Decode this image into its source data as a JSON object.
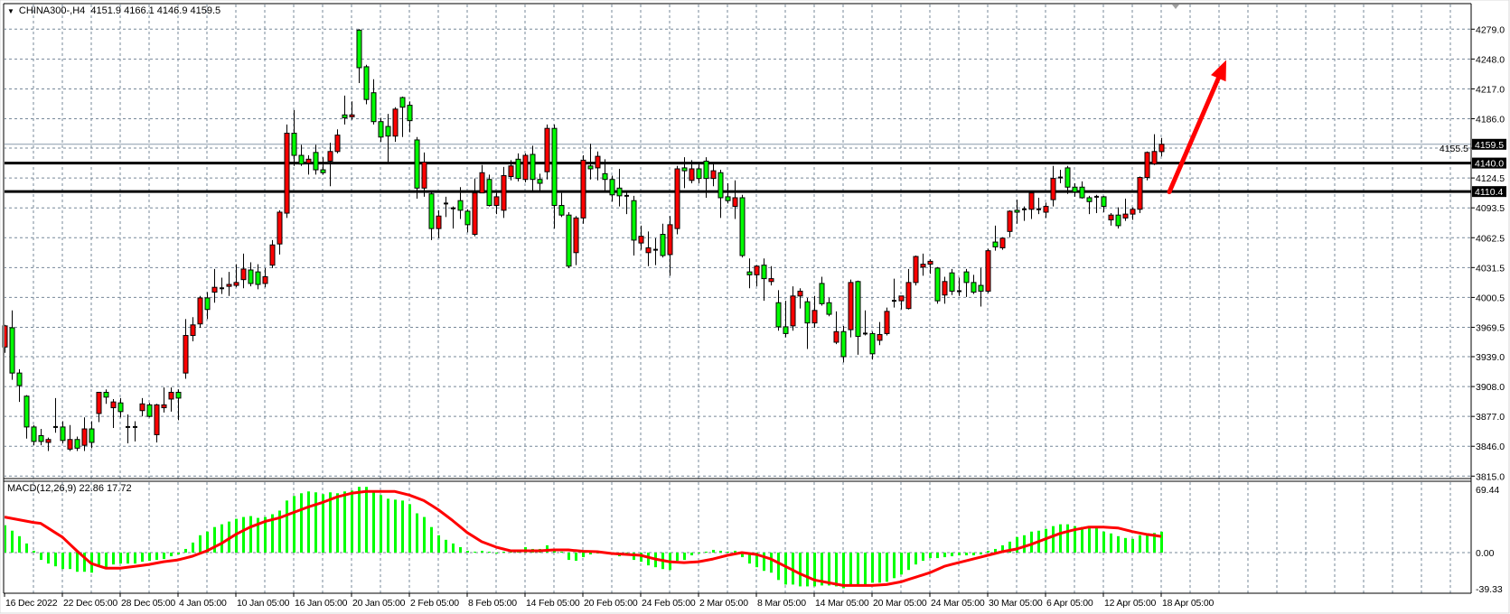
{
  "window": {
    "symbol_label": "CHINA300-,H4",
    "ohlc_readout": "4151.9 4166.1 4146.9 4159.5",
    "collapse_icon": "triangle-down-icon",
    "chart_shift_marker_icon": "triangle-down-icon"
  },
  "colors": {
    "bull_candle": "#ff0000",
    "bear_candle": "#00ff00",
    "candle_outline": "#000000",
    "grid": "#778899",
    "macd_histogram": "#00ff00",
    "macd_signal": "#ff0000",
    "level_lines": "#000000",
    "arrow": "#ff0000",
    "price_tag_bg": "#000000",
    "price_tag_text": "#ffffff"
  },
  "chart_data": [
    {
      "type": "candlestick",
      "symbol": "CHINA300-",
      "timeframe": "H4",
      "ylim": [
        3815.0,
        4279.0
      ],
      "grid": true,
      "y_ticks": [
        "4279.0",
        "4248.0",
        "4217.0",
        "4186.0",
        "4155.5",
        "4124.5",
        "4093.5",
        "4062.5",
        "4031.5",
        "4000.5",
        "3969.5",
        "3939.0",
        "3908.0",
        "3877.0",
        "3846.0",
        "3815.0"
      ],
      "x_ticks": [
        "16 Dec 2022",
        "22 Dec 05:00",
        "28 Dec 05:00",
        "4 Jan 05:00",
        "10 Jan 05:00",
        "16 Jan 05:00",
        "20 Jan 05:00",
        "2 Feb 05:00",
        "8 Feb 05:00",
        "14 Feb 05:00",
        "20 Feb 05:00",
        "24 Feb 05:00",
        "2 Mar 05:00",
        "8 Mar 05:00",
        "14 Mar 05:00",
        "20 Mar 05:00",
        "24 Mar 05:00",
        "30 Mar 05:00",
        "6 Apr 05:00",
        "12 Apr 05:00",
        "18 Apr 05:00"
      ],
      "current_price": "4159.5",
      "horizontal_levels": [
        "4140.0",
        "4110.4"
      ],
      "arrow": {
        "direction": "up",
        "from_price": 4110,
        "to_price": 4247
      },
      "ohlc": [
        [
          3949,
          3972,
          3943,
          3971
        ],
        [
          3969,
          3987,
          3915,
          3922
        ],
        [
          3922,
          3926,
          3892,
          3909
        ],
        [
          3898,
          3899,
          3854,
          3866
        ],
        [
          3866,
          3868,
          3847,
          3851
        ],
        [
          3857,
          3864,
          3847,
          3851
        ],
        [
          3850,
          3855,
          3841,
          3853
        ],
        [
          3866,
          3896,
          3860,
          3866
        ],
        [
          3866,
          3872,
          3849,
          3852
        ],
        [
          3843,
          3868,
          3841,
          3853
        ],
        [
          3853,
          3856,
          3841,
          3844
        ],
        [
          3847,
          3876,
          3841,
          3864
        ],
        [
          3864,
          3872,
          3844,
          3850
        ],
        [
          3880,
          3902,
          3871,
          3902
        ],
        [
          3902,
          3905,
          3890,
          3897
        ],
        [
          3886,
          3895,
          3865,
          3892
        ],
        [
          3891,
          3896,
          3876,
          3882
        ],
        [
          3866,
          3879,
          3849,
          3866
        ],
        [
          3866,
          3872,
          3851,
          3866
        ],
        [
          3883,
          3896,
          3877,
          3890
        ],
        [
          3889,
          3891,
          3876,
          3877
        ],
        [
          3858,
          3890,
          3850,
          3889
        ],
        [
          3886,
          3907,
          3881,
          3889
        ],
        [
          3895,
          3907,
          3882,
          3902
        ],
        [
          3902,
          3905,
          3873,
          3896
        ],
        [
          3922,
          3978,
          3916,
          3961
        ],
        [
          3961,
          3980,
          3955,
          3972
        ],
        [
          3973,
          4002,
          3969,
          4000
        ],
        [
          4000,
          4006,
          3978,
          3988
        ],
        [
          4006,
          4030,
          3995,
          4011
        ],
        [
          4010,
          4021,
          4004,
          4010
        ],
        [
          4012,
          4027,
          4002,
          4014
        ],
        [
          4013,
          4035,
          4011,
          4016
        ],
        [
          4019,
          4046,
          4010,
          4030
        ],
        [
          4029,
          4037,
          4012,
          4015
        ],
        [
          4027,
          4035,
          4009,
          4014
        ],
        [
          4015,
          4031,
          4011,
          4022
        ],
        [
          4034,
          4060,
          4031,
          4055
        ],
        [
          4056,
          4091,
          4045,
          4089
        ],
        [
          4088,
          4180,
          4083,
          4171
        ],
        [
          4171,
          4195,
          4137,
          4148
        ],
        [
          4148,
          4159,
          4137,
          4139
        ],
        [
          4140,
          4148,
          4128,
          4144
        ],
        [
          4151,
          4159,
          4128,
          4133
        ],
        [
          4133,
          4146,
          4128,
          4130
        ],
        [
          4142,
          4161,
          4116,
          4152
        ],
        [
          4152,
          4175,
          4150,
          4169
        ],
        [
          4190,
          4210,
          4180,
          4187
        ],
        [
          4188,
          4204,
          4185,
          4190
        ],
        [
          4278,
          4279,
          4223,
          4239
        ],
        [
          4240,
          4242,
          4201,
          4206
        ],
        [
          4213,
          4227,
          4180,
          4183
        ],
        [
          4183,
          4187,
          4162,
          4167
        ],
        [
          4178,
          4191,
          4141,
          4168
        ],
        [
          4168,
          4198,
          4162,
          4196
        ],
        [
          4208,
          4209,
          4167,
          4198
        ],
        [
          4200,
          4204,
          4172,
          4184
        ],
        [
          4164,
          4167,
          4103,
          4114
        ],
        [
          4114,
          4151,
          4105,
          4141
        ],
        [
          4108,
          4111,
          4060,
          4072
        ],
        [
          4072,
          4091,
          4062,
          4085
        ],
        [
          4098,
          4105,
          4084,
          4098
        ],
        [
          4093,
          4095,
          4072,
          4093
        ],
        [
          4101,
          4115,
          4082,
          4091
        ],
        [
          4090,
          4092,
          4068,
          4076
        ],
        [
          4066,
          4124,
          4064,
          4109
        ],
        [
          4109,
          4138,
          4109,
          4130
        ],
        [
          4123,
          4128,
          4095,
          4096
        ],
        [
          4096,
          4109,
          4087,
          4105
        ],
        [
          4091,
          4136,
          4083,
          4127
        ],
        [
          4126,
          4143,
          4122,
          4137
        ],
        [
          4144,
          4150,
          4121,
          4124
        ],
        [
          4123,
          4150,
          4120,
          4148
        ],
        [
          4149,
          4158,
          4110,
          4123
        ],
        [
          4123,
          4129,
          4110,
          4119
        ],
        [
          4131,
          4180,
          4123,
          4176
        ],
        [
          4176,
          4180,
          4072,
          4096
        ],
        [
          4096,
          4109,
          4084,
          4086
        ],
        [
          4086,
          4089,
          4031,
          4033
        ],
        [
          4047,
          4085,
          4034,
          4083
        ],
        [
          4083,
          4148,
          4077,
          4143
        ],
        [
          4137,
          4160,
          4123,
          4134
        ],
        [
          4135,
          4152,
          4122,
          4147
        ],
        [
          4129,
          4144,
          4110,
          4123
        ],
        [
          4123,
          4127,
          4100,
          4107
        ],
        [
          4114,
          4134,
          4095,
          4106
        ],
        [
          4106,
          4111,
          4087,
          4106
        ],
        [
          4101,
          4106,
          4044,
          4060
        ],
        [
          4057,
          4075,
          4050,
          4064
        ],
        [
          4047,
          4069,
          4033,
          4052
        ],
        [
          4050,
          4062,
          4034,
          4050
        ],
        [
          4066,
          4077,
          4042,
          4044
        ],
        [
          4045,
          4085,
          4023,
          4076
        ],
        [
          4072,
          4137,
          4066,
          4134
        ],
        [
          4135,
          4146,
          4114,
          4132
        ],
        [
          4122,
          4143,
          4119,
          4134
        ],
        [
          4134,
          4141,
          4119,
          4124
        ],
        [
          4142,
          4146,
          4104,
          4124
        ],
        [
          4124,
          4141,
          4116,
          4132
        ],
        [
          4130,
          4133,
          4083,
          4104
        ],
        [
          4105,
          4119,
          4098,
          4101
        ],
        [
          4095,
          4122,
          4082,
          4104
        ],
        [
          4104,
          4107,
          4042,
          4044
        ],
        [
          4027,
          4041,
          4010,
          4024
        ],
        [
          4024,
          4034,
          4012,
          4033
        ],
        [
          4034,
          4041,
          3997,
          4020
        ],
        [
          4017,
          4033,
          4013,
          4020
        ],
        [
          3995,
          4008,
          3966,
          3970
        ],
        [
          3970,
          3997,
          3959,
          3963
        ],
        [
          3971,
          4012,
          3966,
          4002
        ],
        [
          4002,
          4010,
          3989,
          4007
        ],
        [
          3996,
          4000,
          3947,
          3974
        ],
        [
          3974,
          4002,
          3969,
          3987
        ],
        [
          4015,
          4022,
          3992,
          3994
        ],
        [
          3995,
          4000,
          3981,
          3983
        ],
        [
          3954,
          3986,
          3952,
          3965
        ],
        [
          3965,
          3971,
          3933,
          3939
        ],
        [
          3967,
          4019,
          3959,
          4016
        ],
        [
          4017,
          4018,
          3941,
          3960
        ],
        [
          3963,
          3987,
          3961,
          3963
        ],
        [
          3963,
          3965,
          3936,
          3942
        ],
        [
          3956,
          3975,
          3951,
          3962
        ],
        [
          3963,
          3990,
          3961,
          3986
        ],
        [
          3997,
          4020,
          3990,
          3997
        ],
        [
          3997,
          4002,
          3988,
          4002
        ],
        [
          3989,
          4030,
          3988,
          4016
        ],
        [
          4016,
          4044,
          4013,
          4043
        ],
        [
          4032,
          4046,
          4023,
          4035
        ],
        [
          4035,
          4040,
          4025,
          4038
        ],
        [
          4031,
          4032,
          3994,
          3997
        ],
        [
          4003,
          4022,
          3994,
          4017
        ],
        [
          4026,
          4030,
          4003,
          4007
        ],
        [
          4007,
          4021,
          4002,
          4007
        ],
        [
          4027,
          4030,
          4001,
          4016
        ],
        [
          4016,
          4024,
          4004,
          4006
        ],
        [
          4013,
          4031,
          3991,
          4007
        ],
        [
          4007,
          4051,
          4005,
          4049
        ],
        [
          4058,
          4075,
          4049,
          4053
        ],
        [
          4052,
          4063,
          4050,
          4062
        ],
        [
          4069,
          4091,
          4063,
          4090
        ],
        [
          4091,
          4102,
          4077,
          4089
        ],
        [
          4092,
          4095,
          4080,
          4092
        ],
        [
          4092,
          4110,
          4082,
          4109
        ],
        [
          4092,
          4104,
          4087,
          4092
        ],
        [
          4089,
          4099,
          4083,
          4095
        ],
        [
          4102,
          4137,
          4095,
          4124
        ],
        [
          4125,
          4133,
          4119,
          4125
        ],
        [
          4135,
          4137,
          4108,
          4115
        ],
        [
          4115,
          4119,
          4105,
          4110
        ],
        [
          4115,
          4121,
          4103,
          4104
        ],
        [
          4104,
          4106,
          4087,
          4100
        ],
        [
          4105,
          4107,
          4088,
          4105
        ],
        [
          4105,
          4106,
          4089,
          4095
        ],
        [
          4081,
          4088,
          4075,
          4086
        ],
        [
          4086,
          4094,
          4072,
          4075
        ],
        [
          4083,
          4103,
          4080,
          4087
        ],
        [
          4087,
          4094,
          4081,
          4092
        ],
        [
          4092,
          4126,
          4088,
          4125
        ],
        [
          4125,
          4152,
          4122,
          4151
        ],
        [
          4139,
          4170,
          4138,
          4152
        ],
        [
          4151.9,
          4166.1,
          4146.9,
          4159.5
        ]
      ]
    },
    {
      "type": "bar+line",
      "indicator_label": "MACD(12,26,9) 22.86 17.72",
      "ylim": [
        -39.33,
        69.44
      ],
      "y_ticks": [
        "69.44",
        "0.00",
        "-39.33"
      ],
      "grid": true,
      "histogram": [
        30,
        24,
        18,
        10,
        2,
        -8,
        -12,
        -15,
        -18,
        -18,
        -21,
        -21,
        -22,
        -15,
        -16,
        -13,
        -12,
        -12,
        -12,
        -10,
        -9,
        -8,
        -7,
        -4,
        -2,
        4,
        11,
        19,
        23,
        28,
        31,
        34,
        37,
        39,
        40,
        38,
        39,
        42,
        46,
        57,
        62,
        65,
        67,
        66,
        64,
        66,
        65,
        67,
        68,
        72,
        72,
        67,
        63,
        59,
        58,
        57,
        53,
        43,
        39,
        28,
        19,
        14,
        10,
        6,
        2,
        1,
        2,
        1,
        0,
        1,
        2,
        2,
        6,
        4,
        4,
        8,
        2,
        1,
        -8,
        -9,
        -5,
        -2,
        -1,
        -1,
        -2,
        -4,
        -3,
        -8,
        -10,
        -14,
        -16,
        -18,
        -19,
        -9,
        -8,
        -3,
        -1,
        1,
        3,
        2,
        1,
        2,
        -5,
        -12,
        -16,
        -20,
        -22,
        -30,
        -35,
        -35,
        -37,
        -37,
        -37,
        -36,
        -36,
        -37,
        -39,
        -36,
        -37,
        -36,
        -33,
        -33,
        -32,
        -28,
        -24,
        -19,
        -13,
        -9,
        -6,
        -6,
        -5,
        -4,
        -3,
        -3,
        -3,
        -2,
        2,
        4,
        8,
        12,
        17,
        19,
        23,
        24,
        26,
        29,
        31,
        31,
        29,
        28,
        28,
        27,
        23,
        21,
        18,
        16,
        15,
        19,
        21,
        21.5,
        22.86
      ],
      "signal": [
        39,
        37.5,
        36,
        34.5,
        33,
        32,
        27,
        22,
        17,
        9.5,
        2,
        -5,
        -12,
        -14.5,
        -17,
        -17,
        -17,
        -16,
        -15,
        -14,
        -13,
        -11.5,
        -10,
        -9,
        -8,
        -6,
        -4,
        -1,
        2,
        6,
        10,
        15,
        20,
        24,
        28,
        31,
        34,
        36,
        38,
        41,
        44,
        47,
        50,
        52.5,
        55,
        58,
        61,
        63,
        65,
        66,
        67,
        67,
        67,
        67,
        67,
        65,
        63,
        60,
        57,
        52,
        47,
        41,
        35,
        28.5,
        22,
        17,
        12,
        9,
        6,
        4,
        2,
        2,
        2,
        2,
        2,
        2.5,
        3,
        3,
        3,
        2.2,
        1.5,
        1.2,
        1,
        0,
        -1,
        -1.5,
        -2,
        -2.5,
        -3,
        -5,
        -7,
        -8.5,
        -10,
        -10.5,
        -11,
        -10.5,
        -10,
        -8.5,
        -7,
        -5,
        -3,
        -1.5,
        0,
        -1,
        -2,
        -4.5,
        -7,
        -11,
        -15,
        -19,
        -23,
        -26.5,
        -30,
        -31.5,
        -33,
        -34.5,
        -36,
        -36,
        -36,
        -36,
        -36,
        -35.5,
        -35,
        -33.5,
        -32,
        -29.5,
        -27,
        -24.5,
        -22,
        -18.5,
        -15,
        -13,
        -11,
        -9,
        -7,
        -5,
        -3,
        -1,
        1,
        2.5,
        4,
        6.5,
        9,
        12,
        15,
        18,
        21,
        23,
        25,
        26.5,
        28,
        28,
        28,
        27.5,
        27,
        25,
        23,
        21.5,
        20,
        18.9,
        17.72
      ]
    }
  ]
}
